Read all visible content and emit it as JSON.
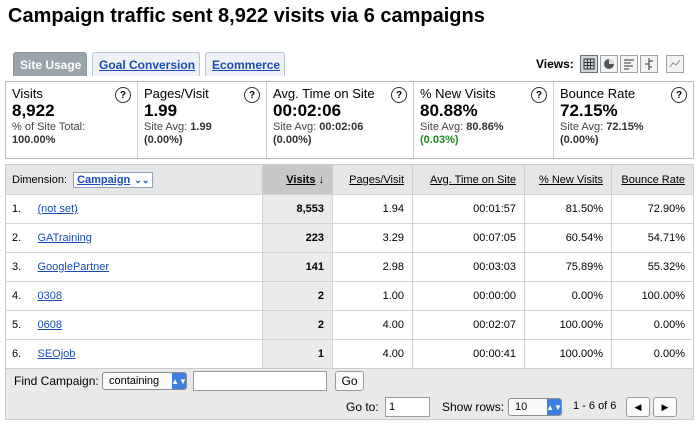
{
  "title": "Campaign traffic sent 8,922 visits via 6 campaigns",
  "tabs": [
    {
      "label": "Site Usage"
    },
    {
      "label": "Goal Conversion"
    },
    {
      "label": "Ecommerce"
    }
  ],
  "views": {
    "label": "Views:"
  },
  "summary": [
    {
      "name": "Visits",
      "value": "8,922",
      "sub1": "% of Site Total:",
      "sub2": "100.00%"
    },
    {
      "name": "Pages/Visit",
      "value": "1.99",
      "sub1_prefix": "Site Avg: ",
      "sub1_value": "1.99",
      "sub2": "(0.00%)"
    },
    {
      "name": "Avg. Time on Site",
      "value": "00:02:06",
      "sub1_prefix": "Site Avg: ",
      "sub1_value": "00:02:06",
      "sub2": "(0.00%)"
    },
    {
      "name": "% New Visits",
      "value": "80.88%",
      "sub1_prefix": "Site Avg: ",
      "sub1_value": "80.86%",
      "sub2": "(0.03%)"
    },
    {
      "name": "Bounce Rate",
      "value": "72.15%",
      "sub1_prefix": "Site Avg: ",
      "sub1_value": "72.15%",
      "sub2": "(0.00%)"
    }
  ],
  "help_glyph": "?",
  "table": {
    "dimension_label": "Dimension:",
    "dimension_value": "Campaign",
    "columns": [
      "Visits",
      "Pages/Visit",
      "Avg. Time on Site",
      "% New Visits",
      "Bounce Rate"
    ],
    "rows": [
      {
        "n": "1.",
        "campaign": "(not set)",
        "visits": "8,553",
        "ppv": "1.94",
        "time": "00:01:57",
        "new": "81.50%",
        "bounce": "72.90%"
      },
      {
        "n": "2.",
        "campaign": "GATraining",
        "visits": "223",
        "ppv": "3.29",
        "time": "00:07:05",
        "new": "60.54%",
        "bounce": "54.71%"
      },
      {
        "n": "3.",
        "campaign": "GooglePartner",
        "visits": "141",
        "ppv": "2.98",
        "time": "00:03:03",
        "new": "75.89%",
        "bounce": "55.32%"
      },
      {
        "n": "4.",
        "campaign": "0308",
        "visits": "2",
        "ppv": "1.00",
        "time": "00:00:00",
        "new": "0.00%",
        "bounce": "100.00%"
      },
      {
        "n": "5.",
        "campaign": "0608",
        "visits": "2",
        "ppv": "4.00",
        "time": "00:02:07",
        "new": "100.00%",
        "bounce": "0.00%"
      },
      {
        "n": "6.",
        "campaign": "SEOjob",
        "visits": "1",
        "ppv": "4.00",
        "time": "00:00:41",
        "new": "100.00%",
        "bounce": "0.00%"
      }
    ]
  },
  "footer": {
    "find_label": "Find Campaign:",
    "find_mode": "containing",
    "find_value": "",
    "go_label": "Go",
    "goto_label": "Go to:",
    "goto_value": "1",
    "show_rows_label": "Show rows:",
    "show_rows_value": "10",
    "range_text": "1 - 6 of 6",
    "prev_glyph": "◀",
    "next_glyph": "▶"
  },
  "colors": {
    "link": "#1a4bb3",
    "active_tab": "#9aa4ab",
    "positive": "#1d8a1d",
    "select_arrow": "#3d7fe0"
  }
}
